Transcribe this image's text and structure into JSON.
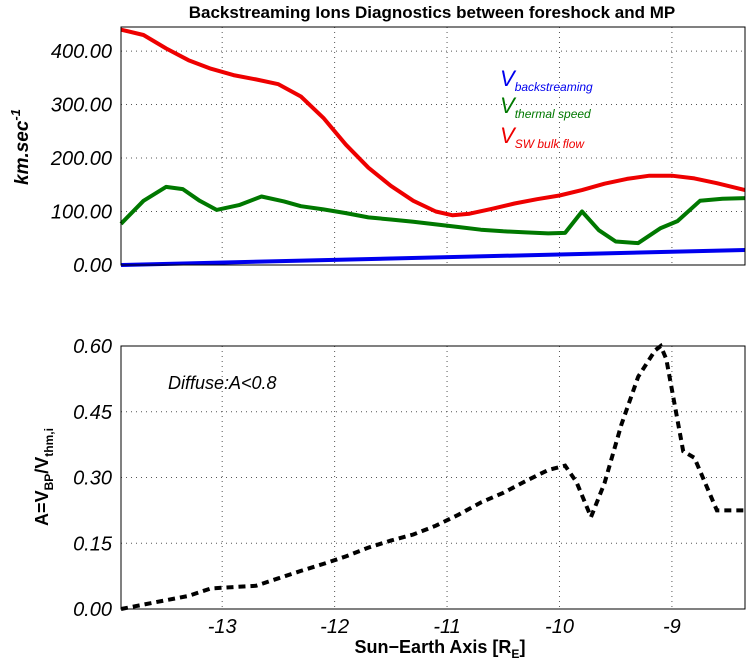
{
  "title": "Backstreaming Ions Diagnostics between foreshock and MP",
  "colors": {
    "blue": "#0000ee",
    "green": "#007800",
    "red": "#ee0000",
    "black": "#000000"
  },
  "chart_data": [
    {
      "type": "line",
      "ylabel": "km.sec",
      "ylabel_sup": "-1",
      "xlim": [
        -13.9,
        -8.35
      ],
      "ylim": [
        0,
        445
      ],
      "yticks": [
        0,
        100,
        200,
        300,
        400
      ],
      "ytick_labels": [
        "0.00",
        "100.00",
        "200.00",
        "300.00",
        "400.00"
      ],
      "series": [
        {
          "name": "backstreaming",
          "legend_main": "V",
          "legend_sub": "backstreaming",
          "color": "#0000ee",
          "x": [
            -13.9,
            -8.35
          ],
          "y": [
            0,
            28
          ]
        },
        {
          "name": "thermal speed",
          "legend_main": "V",
          "legend_sub": "thermal speed",
          "color": "#007800",
          "x": [
            -13.9,
            -13.7,
            -13.5,
            -13.35,
            -13.2,
            -13.05,
            -12.85,
            -12.65,
            -12.45,
            -12.3,
            -12.1,
            -11.9,
            -11.7,
            -11.5,
            -11.3,
            -11.1,
            -10.9,
            -10.7,
            -10.5,
            -10.3,
            -10.1,
            -9.95,
            -9.8,
            -9.65,
            -9.5,
            -9.3,
            -9.1,
            -8.95,
            -8.75,
            -8.55,
            -8.35
          ],
          "y": [
            77,
            120,
            146,
            142,
            120,
            103,
            112,
            128,
            119,
            110,
            104,
            97,
            89,
            85,
            81,
            76,
            71,
            66,
            63,
            61,
            59,
            60,
            100,
            65,
            44,
            41,
            69,
            82,
            120,
            124,
            125
          ]
        },
        {
          "name": "SW bulk flow",
          "legend_main": "V",
          "legend_sub": "SW bulk flow",
          "color": "#ee0000",
          "x": [
            -13.9,
            -13.7,
            -13.5,
            -13.3,
            -13.1,
            -12.9,
            -12.7,
            -12.5,
            -12.3,
            -12.1,
            -11.9,
            -11.7,
            -11.5,
            -11.3,
            -11.1,
            -10.95,
            -10.8,
            -10.6,
            -10.4,
            -10.2,
            -10.0,
            -9.8,
            -9.6,
            -9.4,
            -9.2,
            -9.0,
            -8.8,
            -8.6,
            -8.35
          ],
          "y": [
            440,
            430,
            405,
            383,
            367,
            355,
            347,
            338,
            315,
            275,
            225,
            182,
            148,
            120,
            100,
            93,
            96,
            105,
            115,
            123,
            130,
            140,
            152,
            161,
            167,
            167,
            162,
            153,
            140
          ]
        }
      ]
    },
    {
      "type": "line",
      "ylabel": "A=V",
      "ylabel_sub1": "BP",
      "ylabel_mid": "/V",
      "ylabel_sub2": "thm,i",
      "xlabel": "Sun−Earth Axis [R",
      "xlabel_sub": "E",
      "xlabel_end": "]",
      "xlim": [
        -13.9,
        -8.35
      ],
      "ylim": [
        0,
        0.6
      ],
      "xticks": [
        -13,
        -12,
        -11,
        -10,
        -9
      ],
      "xtick_labels": [
        "-13",
        "-12",
        "-11",
        "-10",
        "-9"
      ],
      "yticks": [
        0,
        0.15,
        0.3,
        0.45,
        0.6
      ],
      "ytick_labels": [
        "0.00",
        "0.15",
        "0.30",
        "0.45",
        "0.60"
      ],
      "annotation": "Diffuse:A<0.8",
      "series": [
        {
          "name": "A",
          "color": "#000000",
          "x": [
            -13.9,
            -13.7,
            -13.5,
            -13.3,
            -13.1,
            -12.9,
            -12.7,
            -12.5,
            -12.3,
            -12.1,
            -11.9,
            -11.7,
            -11.5,
            -11.3,
            -11.1,
            -10.9,
            -10.7,
            -10.5,
            -10.3,
            -10.1,
            -9.95,
            -9.85,
            -9.72,
            -9.6,
            -9.45,
            -9.3,
            -9.15,
            -9.1,
            -9.05,
            -8.9,
            -8.8,
            -8.6,
            -8.35
          ],
          "y": [
            0.0,
            0.01,
            0.02,
            0.03,
            0.047,
            0.05,
            0.053,
            0.07,
            0.087,
            0.103,
            0.12,
            0.14,
            0.156,
            0.17,
            0.19,
            0.215,
            0.243,
            0.265,
            0.292,
            0.317,
            0.327,
            0.29,
            0.21,
            0.287,
            0.42,
            0.53,
            0.59,
            0.6,
            0.57,
            0.36,
            0.345,
            0.225,
            0.225
          ]
        }
      ]
    }
  ]
}
